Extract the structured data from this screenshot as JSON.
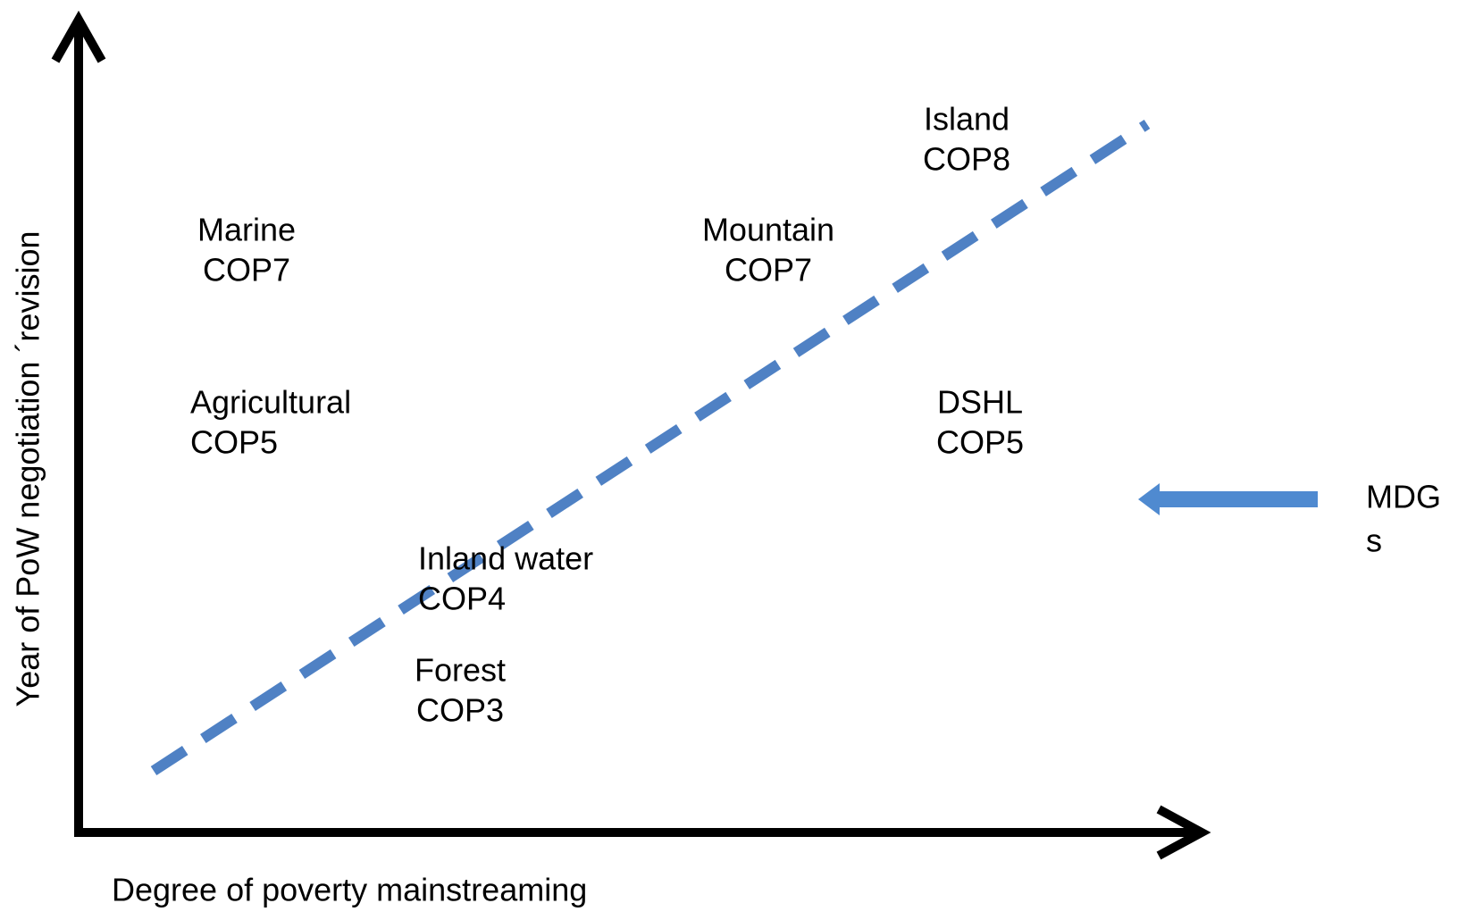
{
  "x_axis_label": "Degree of poverty mainstreaming",
  "y_axis_label": "Year of PoW negotiation ´revision",
  "items": [
    {
      "name": "Island",
      "cop": "COP8"
    },
    {
      "name": "Mountain",
      "cop": "COP7"
    },
    {
      "name": "Marine",
      "cop": "COP7"
    },
    {
      "name": "Agricultural",
      "cop": "COP5"
    },
    {
      "name": "DSHL",
      "cop": "COP5"
    },
    {
      "name": "Inland water",
      "cop": "COP4"
    },
    {
      "name": "Forest",
      "cop": "COP3"
    }
  ],
  "mdgs_label": [
    "MDG",
    "s"
  ]
}
